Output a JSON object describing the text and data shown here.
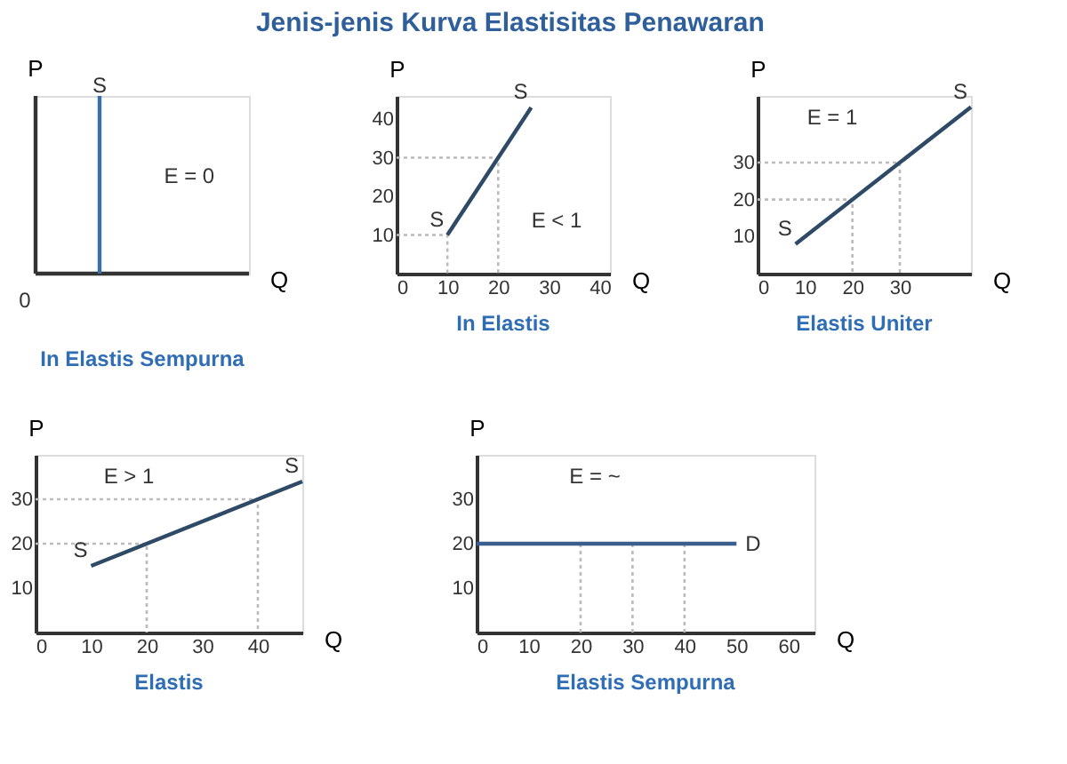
{
  "chart_data": [
    {
      "type": "other",
      "title": "In Elastis Sempurna",
      "subtitle": "Jenis-jenis Kurva Elastisitas Penawaran",
      "xlabel": "Q",
      "ylabel": "P",
      "annotations": [
        "S",
        "E = 0",
        "0"
      ]
    },
    {
      "type": "line",
      "title": "In Elastis",
      "xlabel": "Q",
      "ylabel": "P",
      "xlim": [
        0,
        42
      ],
      "ylim": [
        0,
        46
      ],
      "xticks": [
        0,
        10,
        20,
        30,
        40
      ],
      "yticks": [
        10,
        20,
        30,
        40
      ],
      "grid": false,
      "series": [
        {
          "color": "#bbbbbb",
          "line_style": "dotted",
          "x": [
            0,
            10,
            10
          ],
          "values": [
            10,
            10,
            0
          ]
        },
        {
          "color": "#bbbbbb",
          "line_style": "dotted",
          "x": [
            0,
            20,
            20
          ],
          "values": [
            30,
            30,
            0
          ]
        },
        {
          "color": "#2f4a66",
          "line_style": "solid",
          "x": [
            10,
            26.5
          ],
          "values": [
            10,
            43
          ]
        }
      ],
      "annotations": [
        {
          "text": "S",
          "x": 10,
          "y": 10
        },
        {
          "text": "S",
          "x": 26.5,
          "y": 43
        },
        "E < 1"
      ]
    },
    {
      "type": "line",
      "title": "Elastis Uniter",
      "xlabel": "Q",
      "ylabel": "P",
      "xlim": [
        0,
        45
      ],
      "ylim": [
        0,
        48
      ],
      "xticks": [
        0,
        10,
        20,
        30
      ],
      "yticks": [
        10,
        20,
        30
      ],
      "grid": false,
      "series": [
        {
          "color": "#bbbbbb",
          "line_style": "dotted",
          "x": [
            0,
            20,
            20
          ],
          "values": [
            20,
            20,
            0
          ]
        },
        {
          "color": "#bbbbbb",
          "line_style": "dotted",
          "x": [
            0,
            30,
            30
          ],
          "values": [
            30,
            30,
            0
          ]
        },
        {
          "color": "#2f4a66",
          "line_style": "solid",
          "x": [
            8,
            45
          ],
          "values": [
            8,
            45
          ]
        }
      ],
      "annotations": [
        {
          "text": "S",
          "x": 8,
          "y": 8
        },
        {
          "text": "S",
          "x": 45,
          "y": 45
        },
        "E = 1"
      ]
    },
    {
      "type": "line",
      "title": "Elastis",
      "xlabel": "Q",
      "ylabel": "P",
      "xlim": [
        0,
        48
      ],
      "ylim": [
        0,
        40
      ],
      "xticks": [
        0,
        10,
        20,
        30,
        40
      ],
      "yticks": [
        10,
        20,
        30
      ],
      "grid": false,
      "series": [
        {
          "color": "#bbbbbb",
          "line_style": "dotted",
          "x": [
            0,
            20,
            20
          ],
          "values": [
            20,
            20,
            0
          ]
        },
        {
          "color": "#bbbbbb",
          "line_style": "dotted",
          "x": [
            0,
            40,
            40
          ],
          "values": [
            30,
            30,
            0
          ]
        },
        {
          "color": "#2f4a66",
          "line_style": "solid",
          "x": [
            10,
            48
          ],
          "values": [
            15,
            34
          ]
        }
      ],
      "annotations": [
        {
          "text": "S",
          "x": 10,
          "y": 15
        },
        {
          "text": "S",
          "x": 48,
          "y": 34
        },
        "E > 1"
      ]
    },
    {
      "type": "line",
      "title": "Elastis Sempurna",
      "xlabel": "Q",
      "ylabel": "P",
      "xlim": [
        0,
        65
      ],
      "ylim": [
        0,
        40
      ],
      "xticks": [
        0,
        10,
        20,
        30,
        40,
        50,
        60
      ],
      "yticks": [
        10,
        20,
        30
      ],
      "grid": false,
      "series": [
        {
          "color": "#bbbbbb",
          "line_style": "dotted",
          "x": [
            20,
            20
          ],
          "values": [
            20,
            0
          ]
        },
        {
          "color": "#bbbbbb",
          "line_style": "dotted",
          "x": [
            30,
            30
          ],
          "values": [
            20,
            0
          ]
        },
        {
          "color": "#bbbbbb",
          "line_style": "dotted",
          "x": [
            40,
            40
          ],
          "values": [
            20,
            0
          ]
        },
        {
          "name": "D",
          "color": "#3a5f8f",
          "line_style": "solid",
          "x": [
            0,
            50
          ],
          "values": [
            20,
            20
          ]
        }
      ],
      "annotations": [
        "E = ~"
      ]
    }
  ]
}
